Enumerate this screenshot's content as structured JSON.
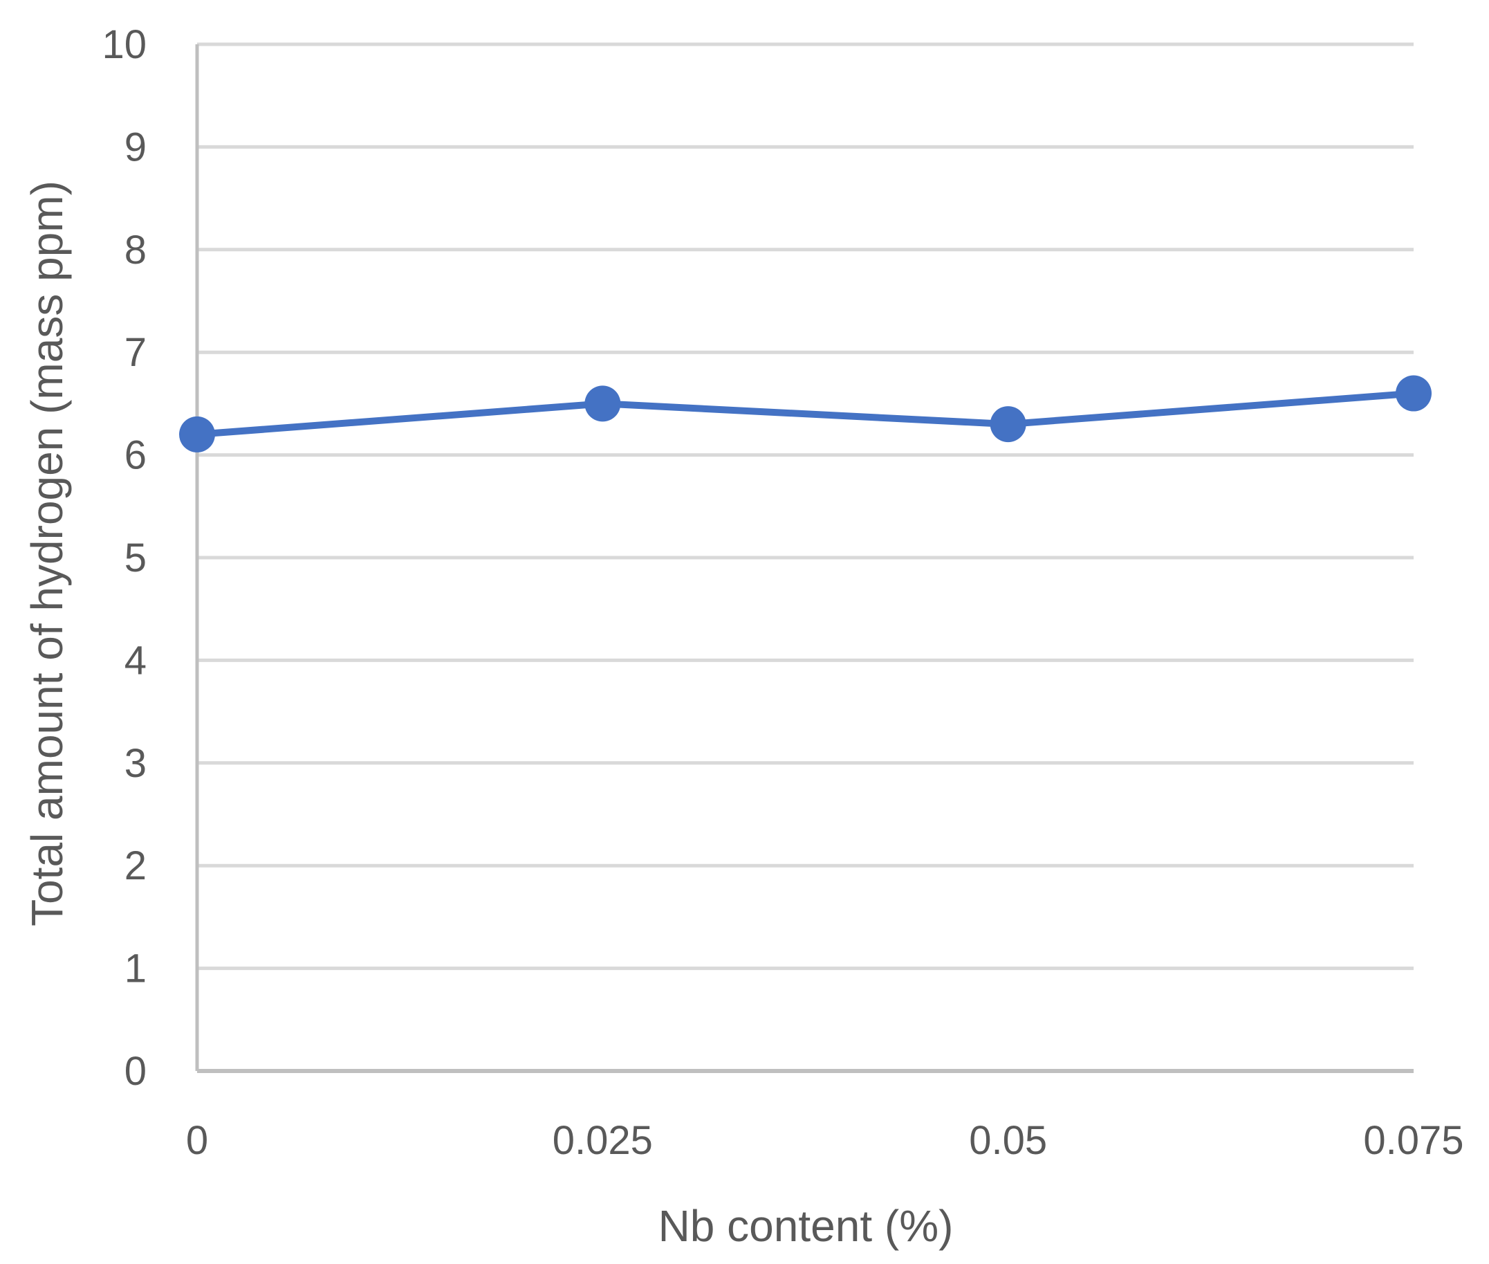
{
  "chart_data": {
    "type": "line",
    "title": "",
    "xlabel": "Nb content (%)",
    "ylabel": "Total amount of hydrogen (mass ppm)",
    "categories": [
      "0",
      "0.025",
      "0.05",
      "0.075"
    ],
    "x": [
      0,
      0.025,
      0.05,
      0.075
    ],
    "series": [
      {
        "values": [
          6.2,
          6.5,
          6.3,
          6.6
        ]
      }
    ],
    "ylim": [
      0,
      10
    ],
    "yticks": [
      "0",
      "1",
      "2",
      "3",
      "4",
      "5",
      "6",
      "7",
      "8",
      "9",
      "10"
    ],
    "grid": "horizontal",
    "legend": "none",
    "colors": {
      "series": "#4472C4",
      "grid": "#D9D9D9",
      "axis": "#BFBFBF",
      "text": "#595959"
    }
  }
}
